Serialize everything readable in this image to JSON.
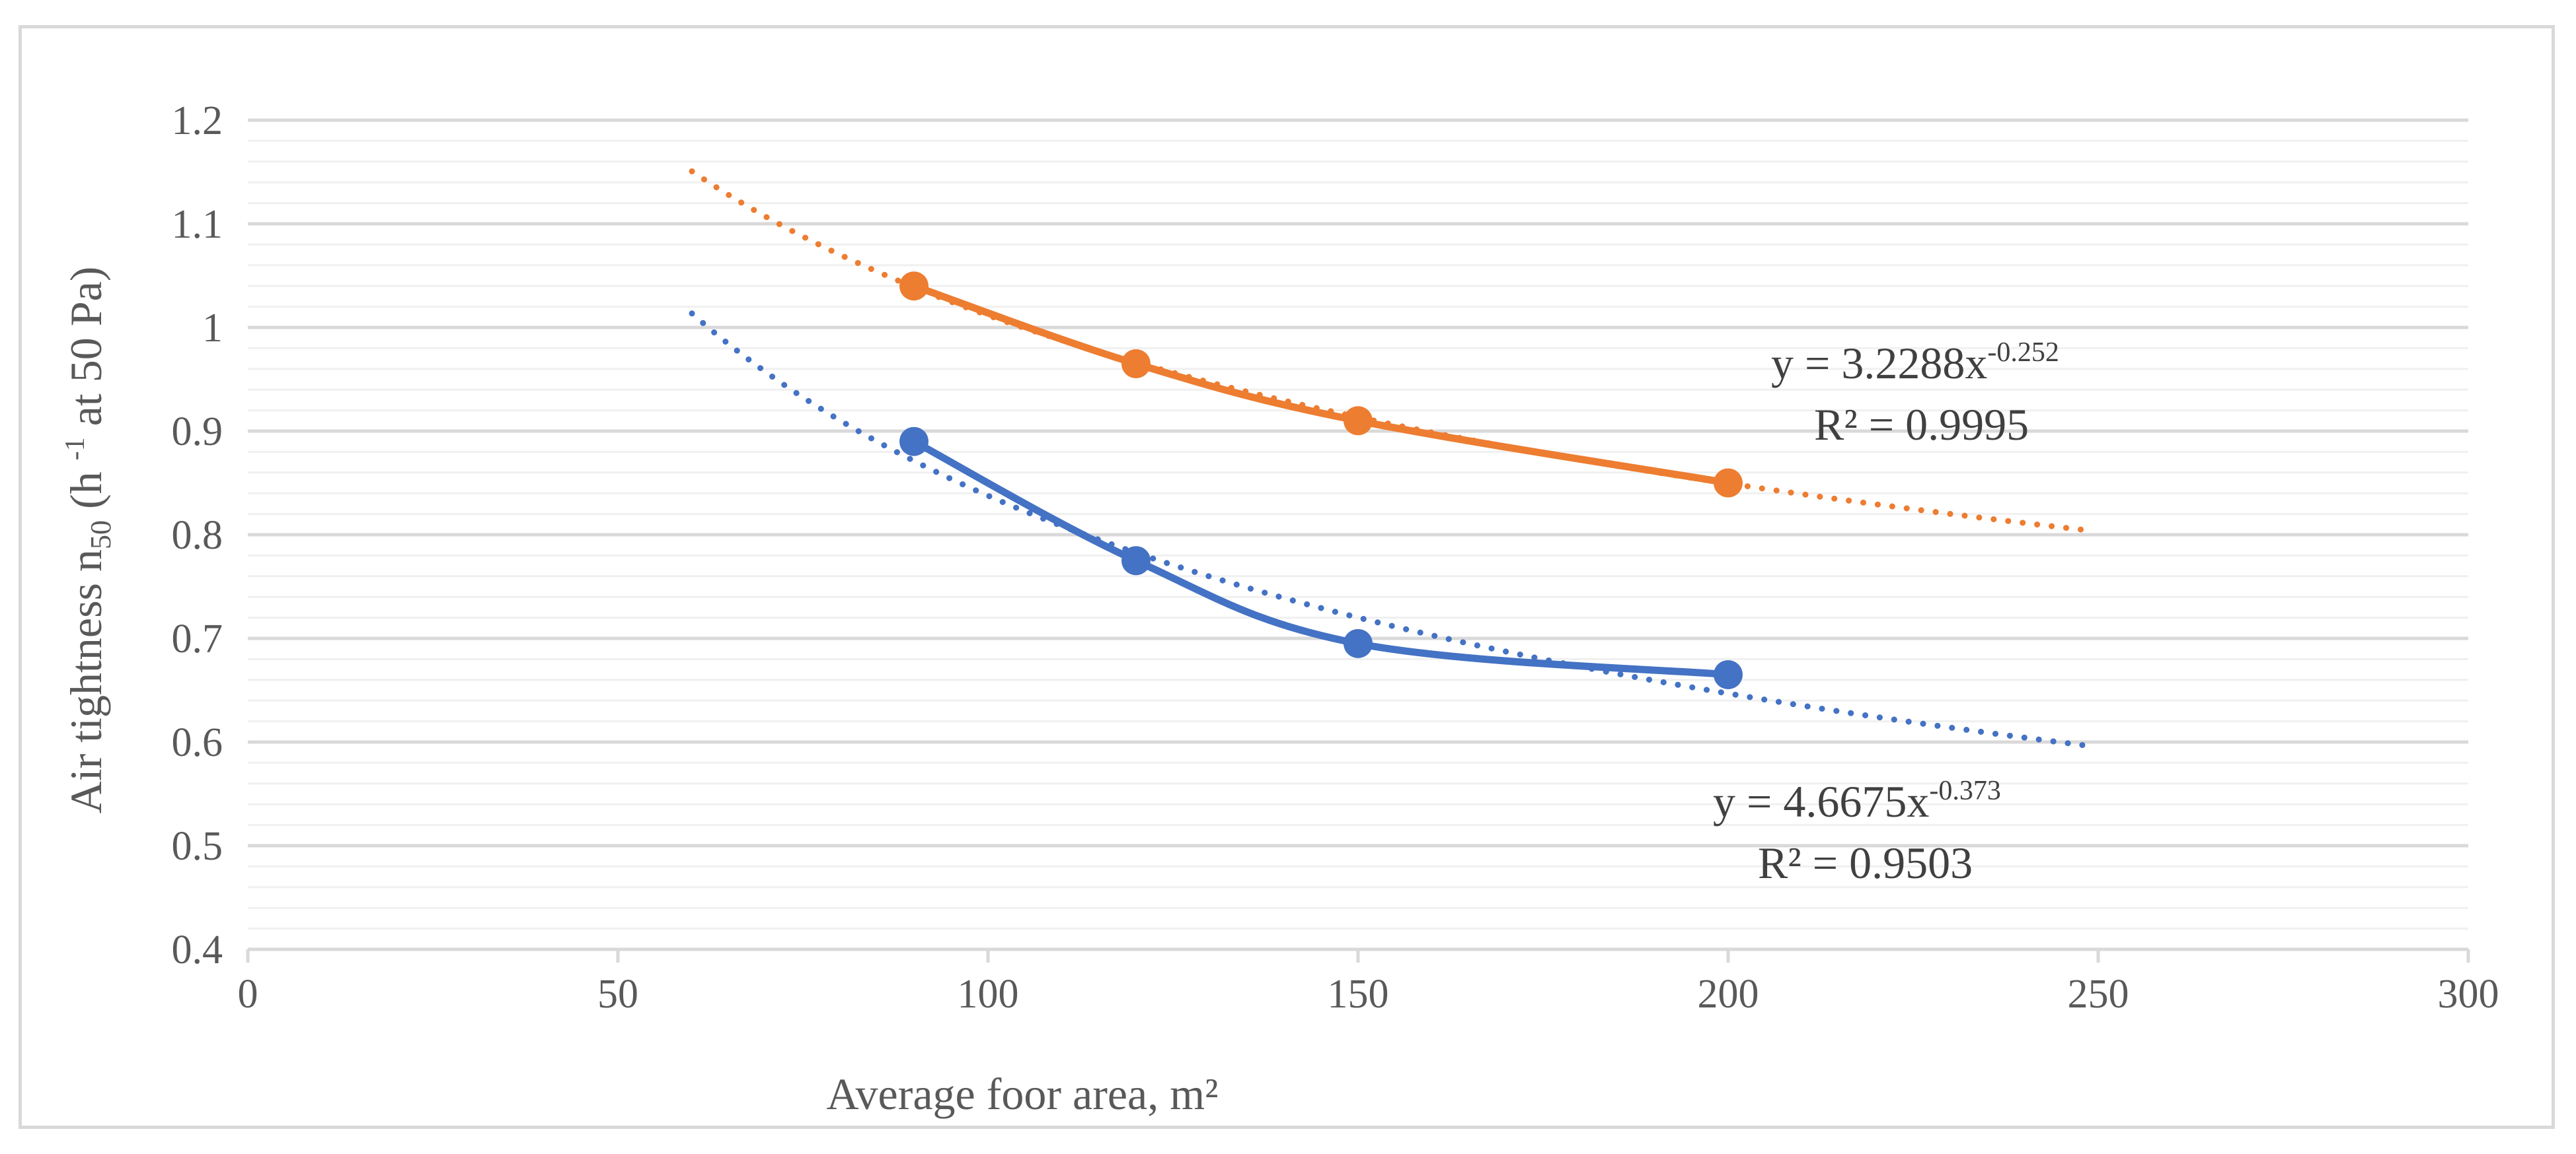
{
  "chart_data": {
    "type": "line",
    "xlabel": "Average foor area, m²",
    "ylabel": {
      "prefix": "Air tightness n",
      "subscript": "50",
      "middle": " (h ",
      "superscript": "-1",
      "suffix": " at 50 Pa)"
    },
    "xlim": [
      0,
      300
    ],
    "ylim": [
      0.4,
      1.2
    ],
    "xticks": [
      0,
      50,
      100,
      150,
      200,
      250,
      300
    ],
    "xtick_labels": [
      "0",
      "50",
      "100",
      "150",
      "200",
      "250",
      "300"
    ],
    "yticks": [
      0.4,
      0.5,
      0.6,
      0.7,
      0.8,
      0.9,
      1.0,
      1.1,
      1.2
    ],
    "ytick_labels": [
      "0.4",
      "0.5",
      "0.6",
      "0.7",
      "0.8",
      "0.9",
      "1",
      "1.1",
      "1.2"
    ],
    "minor_grid_step": 0.02,
    "grid": true,
    "series": [
      {
        "name": "orange",
        "color": "#ED7D31",
        "x": [
          90,
          120,
          150,
          200
        ],
        "y": [
          1.04,
          0.965,
          0.91,
          0.85
        ],
        "trendline": {
          "type": "power",
          "a": 3.2288,
          "b": -0.252,
          "x_range": [
            60,
            249
          ],
          "equation_prefix": "y = 3.2288x",
          "equation_exponent": "-0.252",
          "r2_label": "R² = 0.9995"
        }
      },
      {
        "name": "blue",
        "color": "#4472C4",
        "x": [
          90,
          120,
          150,
          200
        ],
        "y": [
          0.89,
          0.775,
          0.695,
          0.665
        ],
        "trendline": {
          "type": "power",
          "a": 4.6675,
          "b": -0.373,
          "x_range": [
            60,
            249
          ],
          "equation_prefix": "y = 4.6675x",
          "equation_exponent": "-0.373",
          "r2_label": "R² = 0.9503"
        }
      }
    ]
  }
}
